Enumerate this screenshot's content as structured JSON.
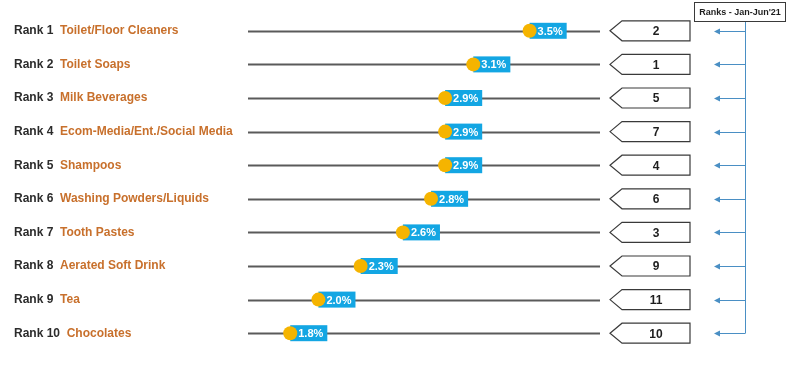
{
  "chart_data": {
    "type": "lollipop",
    "orientation": "horizontal",
    "ranks": [
      "Rank 1",
      "Rank 2",
      "Rank 3",
      "Rank 4",
      "Rank 5",
      "Rank 6",
      "Rank 7",
      "Rank 8",
      "Rank 9",
      "Rank 10"
    ],
    "categories": [
      "Toilet/Floor Cleaners",
      "Toilet Soaps",
      "Milk Beverages",
      "Ecom-Media/Ent./Social Media",
      "Shampoos",
      "Washing Powders/Liquids",
      "Tooth Pastes",
      "Aerated Soft Drink",
      "Tea",
      "Chocolates"
    ],
    "values": [
      3.5,
      3.1,
      2.9,
      2.9,
      2.9,
      2.8,
      2.6,
      2.3,
      2.0,
      1.8
    ],
    "value_labels": [
      "3.5%",
      "3.1%",
      "2.9%",
      "2.9%",
      "2.9%",
      "2.8%",
      "2.6%",
      "2.3%",
      "2.0%",
      "1.8%"
    ],
    "data_labels": true,
    "tick_labels": false,
    "color": "#f5b400",
    "xlim": [
      1.5,
      4
    ],
    "prior_ranks_title": "Ranks - Jan-Jun'21",
    "prior_ranks": [
      2,
      1,
      5,
      7,
      4,
      6,
      3,
      9,
      11,
      10
    ]
  }
}
